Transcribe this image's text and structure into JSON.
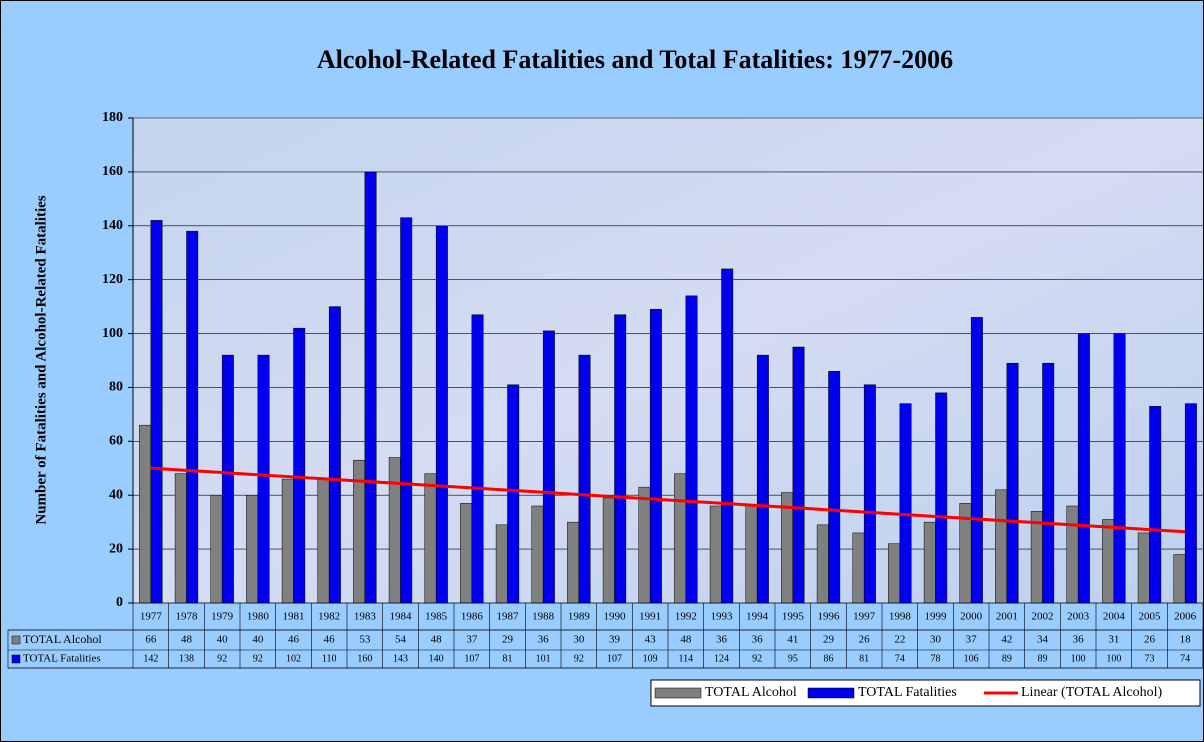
{
  "chart_data": {
    "type": "bar",
    "title": "Alcohol-Related Fatalities and Total Fatalities: 1977-2006",
    "y_label": "Number of Fatalities and Alcohol-Related Fatalities",
    "categories": [
      "1977",
      "1978",
      "1979",
      "1980",
      "1981",
      "1982",
      "1983",
      "1984",
      "1985",
      "1986",
      "1987",
      "1988",
      "1989",
      "1990",
      "1991",
      "1992",
      "1993",
      "1994",
      "1995",
      "1996",
      "1997",
      "1998",
      "1999",
      "2000",
      "2001",
      "2002",
      "2003",
      "2004",
      "2005",
      "2006"
    ],
    "series": [
      {
        "name": "TOTAL Alcohol",
        "color": "#808080",
        "values": [
          66,
          48,
          40,
          40,
          46,
          46,
          53,
          54,
          48,
          37,
          29,
          36,
          30,
          39,
          43,
          48,
          36,
          36,
          41,
          29,
          26,
          22,
          30,
          37,
          42,
          34,
          36,
          31,
          26,
          18
        ]
      },
      {
        "name": "TOTAL Fatalities",
        "color": "#0000ee",
        "values": [
          142,
          138,
          92,
          92,
          102,
          110,
          160,
          143,
          140,
          107,
          81,
          101,
          92,
          107,
          109,
          114,
          124,
          92,
          95,
          86,
          81,
          74,
          78,
          106,
          89,
          89,
          100,
          100,
          73,
          74
        ]
      }
    ],
    "trendline": {
      "name": "Linear (TOTAL Alcohol)",
      "color": "#ff0000"
    },
    "ylim": [
      0,
      180
    ],
    "yticks": [
      0,
      20,
      40,
      60,
      80,
      100,
      120,
      140,
      160,
      180
    ],
    "grid": true
  }
}
